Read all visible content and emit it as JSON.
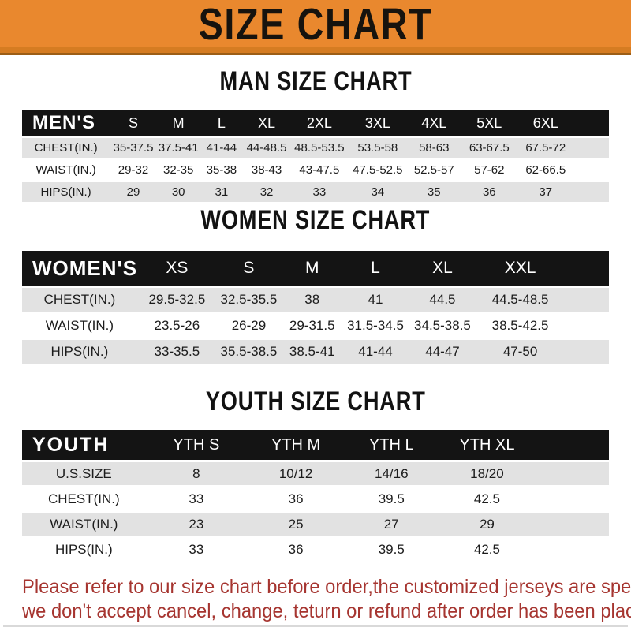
{
  "banner": {
    "title": "SIZE CHART"
  },
  "colors": {
    "banner_orange": "#E9882E",
    "header_black": "#141414",
    "row_gray": "#E2E2E2",
    "footer_red": "#A63530"
  },
  "sections": [
    {
      "heading": "MAN SIZE CHART",
      "table": {
        "label": "MEN'S",
        "columns": [
          "S",
          "M",
          "L",
          "XL",
          "2XL",
          "3XL",
          "4XL",
          "5XL",
          "6XL"
        ],
        "rows": [
          {
            "label": "CHEST(IN.)",
            "values": [
              "35-37.5",
              "37.5-41",
              "41-44",
              "44-48.5",
              "48.5-53.5",
              "53.5-58",
              "58-63",
              "63-67.5",
              "67.5-72"
            ]
          },
          {
            "label": "WAIST(IN.)",
            "values": [
              "29-32",
              "32-35",
              "35-38",
              "38-43",
              "43-47.5",
              "47.5-52.5",
              "52.5-57",
              "57-62",
              "62-66.5"
            ]
          },
          {
            "label": "HIPS(IN.)",
            "values": [
              "29",
              "30",
              "31",
              "32",
              "33",
              "34",
              "35",
              "36",
              "37"
            ]
          }
        ]
      }
    },
    {
      "heading": "WOMEN SIZE CHART",
      "table": {
        "label": "WOMEN'S",
        "columns": [
          "XS",
          "S",
          "M",
          "L",
          "XL",
          "XXL"
        ],
        "rows": [
          {
            "label": "CHEST(IN.)",
            "values": [
              "29.5-32.5",
              "32.5-35.5",
              "38",
              "41",
              "44.5",
              "44.5-48.5"
            ]
          },
          {
            "label": "WAIST(IN.)",
            "values": [
              "23.5-26",
              "26-29",
              "29-31.5",
              "31.5-34.5",
              "34.5-38.5",
              "38.5-42.5"
            ]
          },
          {
            "label": "HIPS(IN.)",
            "values": [
              "33-35.5",
              "35.5-38.5",
              "38.5-41",
              "41-44",
              "44-47",
              "47-50"
            ]
          }
        ]
      }
    },
    {
      "heading": "YOUTH SIZE CHART",
      "table": {
        "label": "YOUTH",
        "columns": [
          "YTH S",
          "YTH M",
          "YTH L",
          "YTH XL"
        ],
        "rows": [
          {
            "label": "U.S.SIZE",
            "values": [
              "8",
              "10/12",
              "14/16",
              "18/20"
            ]
          },
          {
            "label": "CHEST(IN.)",
            "values": [
              "33",
              "36",
              "39.5",
              "42.5"
            ]
          },
          {
            "label": "WAIST(IN.)",
            "values": [
              "23",
              "25",
              "27",
              "29"
            ]
          },
          {
            "label": "HIPS(IN.)",
            "values": [
              "33",
              "36",
              "39.5",
              "42.5"
            ]
          }
        ]
      }
    }
  ],
  "footer": {
    "line1": "Please refer to our size chart before order,the customized jerseys are special products,",
    "line2": "we don't accept cancel, change, teturn or refund after order has been placed!"
  }
}
